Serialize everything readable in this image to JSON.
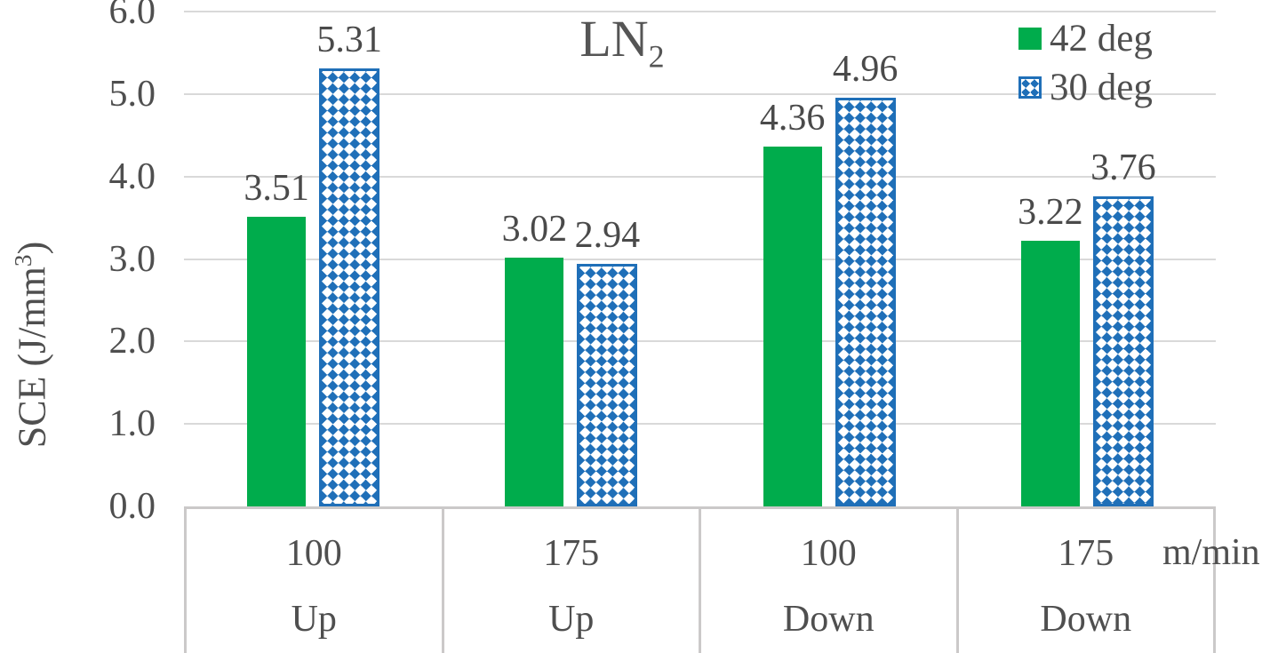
{
  "chart_data": {
    "type": "bar",
    "title": {
      "text": "LN",
      "subscript": "2"
    },
    "ylabel": {
      "pre": "SCE (J/mm",
      "sup": "3",
      "post": ")"
    },
    "unit_label": "m/min",
    "ylim": [
      0.0,
      6.0
    ],
    "yticks": [
      "0.0",
      "1.0",
      "2.0",
      "3.0",
      "4.0",
      "5.0",
      "6.0"
    ],
    "grid": true,
    "legend_position": "top-right",
    "groups": [
      {
        "speed": "100",
        "direction": "Up"
      },
      {
        "speed": "175",
        "direction": "Up"
      },
      {
        "speed": "100",
        "direction": "Down"
      },
      {
        "speed": "175",
        "direction": "Down"
      }
    ],
    "series": [
      {
        "name": "42 deg",
        "color": "#00AC4C",
        "pattern": "solid",
        "values": [
          3.51,
          3.02,
          4.36,
          3.22
        ],
        "value_labels": [
          "3.51",
          "3.02",
          "4.36",
          "3.22"
        ]
      },
      {
        "name": "30 deg",
        "color": "#1F6FB8",
        "pattern": "diamond-grid",
        "values": [
          5.31,
          2.94,
          4.96,
          3.76
        ],
        "value_labels": [
          "5.31",
          "2.94",
          "4.96",
          "3.76"
        ]
      }
    ]
  },
  "colors": {
    "text": "#4F4F4F",
    "gridline": "#D9D9D9",
    "axis_box_border": "#CBC9C9",
    "background": "#FFFFFF"
  }
}
